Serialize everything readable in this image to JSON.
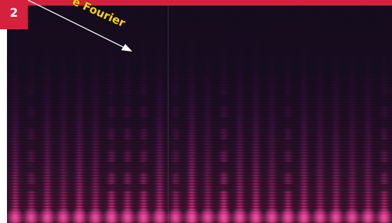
{
  "figure": {
    "number": "2",
    "annotation_label": "e Fourier"
  },
  "colors": {
    "header_red": "#d4213d",
    "label_yellow": "#ffd400",
    "background_dark": "#140d1c",
    "harmonic_purple": "#7a2bb0",
    "harmonic_magenta": "#e0309a",
    "arrow": "#ffffff"
  }
}
